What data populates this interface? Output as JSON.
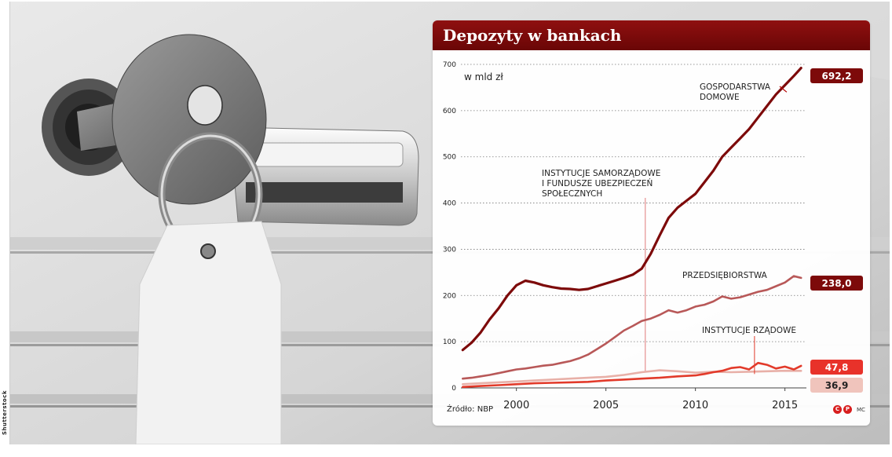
{
  "photo": {
    "credit": "Shutterstock",
    "tag_color": "#f2f2f2"
  },
  "panel": {
    "title": "Depozyty w bankach",
    "source": "Źródło: NBP",
    "logo_letters": [
      "C",
      "P"
    ],
    "author": "MC",
    "header_color": "#7d0a0a"
  },
  "chart_data": {
    "type": "line",
    "title": "Depozyty w bankach",
    "ylabel": "w mld zł",
    "xlabel": "",
    "ylim": [
      0,
      700
    ],
    "xlim": [
      1996.9,
      2016.2
    ],
    "yticks": [
      0,
      100,
      200,
      300,
      400,
      500,
      600,
      700
    ],
    "xticks": [
      2000,
      2005,
      2010,
      2015
    ],
    "grid": "horizontal dotted",
    "annotations": [
      {
        "text_lines": [
          "GOSPODARSTWA",
          "DOMOWE"
        ],
        "series": "GOSPODARSTWA DOMOWE"
      },
      {
        "text_lines": [
          "INSTYTUCJE SAMORZĄDOWE",
          "I FUNDUSZE UBEZPIECZEŃ",
          "SPOŁECZNYCH"
        ],
        "series": "INSTYTUCJE SAMORZĄDOWE I FUNDUSZE UBEZPIECZEŃ SPOŁECZNYCH"
      },
      {
        "text_lines": [
          "PRZEDSIĘBIORSTWA"
        ],
        "series": "PRZEDSIĘBIORSTWA"
      },
      {
        "text_lines": [
          "INSTYTUCJE RZĄDOWE"
        ],
        "series": "INSTYTUCJE RZĄDOWE"
      }
    ],
    "series": [
      {
        "name": "GOSPODARSTWA DOMOWE",
        "color": "#7d0a0a",
        "end_label": "692,2",
        "label_bg": "#7d0a0a",
        "label_fg": "#ffffff",
        "points": [
          [
            1997.0,
            82
          ],
          [
            1997.5,
            98
          ],
          [
            1998.0,
            120
          ],
          [
            1998.5,
            148
          ],
          [
            1999.0,
            172
          ],
          [
            1999.5,
            200
          ],
          [
            2000.0,
            222
          ],
          [
            2000.5,
            232
          ],
          [
            2001.0,
            228
          ],
          [
            2001.5,
            222
          ],
          [
            2002.0,
            218
          ],
          [
            2002.5,
            215
          ],
          [
            2003.0,
            214
          ],
          [
            2003.5,
            212
          ],
          [
            2004.0,
            214
          ],
          [
            2004.5,
            220
          ],
          [
            2005.0,
            226
          ],
          [
            2005.5,
            232
          ],
          [
            2006.0,
            238
          ],
          [
            2006.5,
            245
          ],
          [
            2007.0,
            258
          ],
          [
            2007.5,
            290
          ],
          [
            2008.0,
            330
          ],
          [
            2008.5,
            368
          ],
          [
            2009.0,
            390
          ],
          [
            2009.5,
            405
          ],
          [
            2010.0,
            420
          ],
          [
            2010.5,
            445
          ],
          [
            2011.0,
            470
          ],
          [
            2011.5,
            500
          ],
          [
            2012.0,
            520
          ],
          [
            2012.5,
            540
          ],
          [
            2013.0,
            560
          ],
          [
            2013.5,
            585
          ],
          [
            2014.0,
            610
          ],
          [
            2014.5,
            635
          ],
          [
            2015.0,
            655
          ],
          [
            2015.5,
            675
          ],
          [
            2015.9,
            692.2
          ]
        ]
      },
      {
        "name": "PRZEDSIĘBIORSTWA",
        "color": "#b85858",
        "end_label": "238,0",
        "label_bg": "#7d0a0a",
        "label_fg": "#ffffff",
        "points": [
          [
            1997.0,
            20
          ],
          [
            1997.5,
            22
          ],
          [
            1998.0,
            25
          ],
          [
            1998.5,
            28
          ],
          [
            1999.0,
            32
          ],
          [
            1999.5,
            36
          ],
          [
            2000.0,
            40
          ],
          [
            2000.5,
            42
          ],
          [
            2001.0,
            45
          ],
          [
            2001.5,
            48
          ],
          [
            2002.0,
            50
          ],
          [
            2002.5,
            54
          ],
          [
            2003.0,
            58
          ],
          [
            2003.5,
            64
          ],
          [
            2004.0,
            72
          ],
          [
            2004.5,
            84
          ],
          [
            2005.0,
            96
          ],
          [
            2005.5,
            110
          ],
          [
            2006.0,
            124
          ],
          [
            2006.5,
            134
          ],
          [
            2007.0,
            145
          ],
          [
            2007.5,
            150
          ],
          [
            2008.0,
            158
          ],
          [
            2008.5,
            168
          ],
          [
            2009.0,
            163
          ],
          [
            2009.5,
            168
          ],
          [
            2010.0,
            176
          ],
          [
            2010.5,
            180
          ],
          [
            2011.0,
            187
          ],
          [
            2011.5,
            198
          ],
          [
            2012.0,
            193
          ],
          [
            2012.5,
            196
          ],
          [
            2013.0,
            202
          ],
          [
            2013.5,
            208
          ],
          [
            2014.0,
            212
          ],
          [
            2014.5,
            220
          ],
          [
            2015.0,
            228
          ],
          [
            2015.5,
            242
          ],
          [
            2015.9,
            238.0
          ]
        ]
      },
      {
        "name": "INSTYTUCJE RZĄDOWE",
        "color": "#e23a2a",
        "end_label": "47,8",
        "label_bg": "#e8322a",
        "label_fg": "#ffffff",
        "points": [
          [
            1997.0,
            2
          ],
          [
            1998.0,
            4
          ],
          [
            1999.0,
            6
          ],
          [
            2000.0,
            8
          ],
          [
            2001.0,
            10
          ],
          [
            2002.0,
            11
          ],
          [
            2003.0,
            12
          ],
          [
            2004.0,
            13
          ],
          [
            2005.0,
            16
          ],
          [
            2006.0,
            18
          ],
          [
            2007.0,
            20
          ],
          [
            2008.0,
            22
          ],
          [
            2009.0,
            25
          ],
          [
            2010.0,
            27
          ],
          [
            2010.5,
            30
          ],
          [
            2011.0,
            34
          ],
          [
            2011.5,
            37
          ],
          [
            2012.0,
            43
          ],
          [
            2012.5,
            45
          ],
          [
            2013.0,
            40
          ],
          [
            2013.5,
            54
          ],
          [
            2014.0,
            50
          ],
          [
            2014.5,
            42
          ],
          [
            2015.0,
            46
          ],
          [
            2015.5,
            40
          ],
          [
            2015.9,
            47.8
          ]
        ]
      },
      {
        "name": "INSTYTUCJE SAMORZĄDOWE I FUNDUSZE UBEZPIECZEŃ SPOŁECZNYCH",
        "color": "#e8b0a8",
        "end_label": "36,9",
        "label_bg": "#f0c4bc",
        "label_fg": "#222222",
        "points": [
          [
            1997.0,
            8
          ],
          [
            1998.0,
            10
          ],
          [
            1999.0,
            12
          ],
          [
            2000.0,
            14
          ],
          [
            2001.0,
            16
          ],
          [
            2002.0,
            18
          ],
          [
            2003.0,
            20
          ],
          [
            2004.0,
            22
          ],
          [
            2005.0,
            24
          ],
          [
            2006.0,
            28
          ],
          [
            2007.0,
            34
          ],
          [
            2008.0,
            38
          ],
          [
            2009.0,
            36
          ],
          [
            2010.0,
            33
          ],
          [
            2011.0,
            35
          ],
          [
            2012.0,
            34
          ],
          [
            2013.0,
            35
          ],
          [
            2014.0,
            36
          ],
          [
            2015.0,
            37
          ],
          [
            2015.9,
            36.9
          ]
        ]
      }
    ]
  }
}
